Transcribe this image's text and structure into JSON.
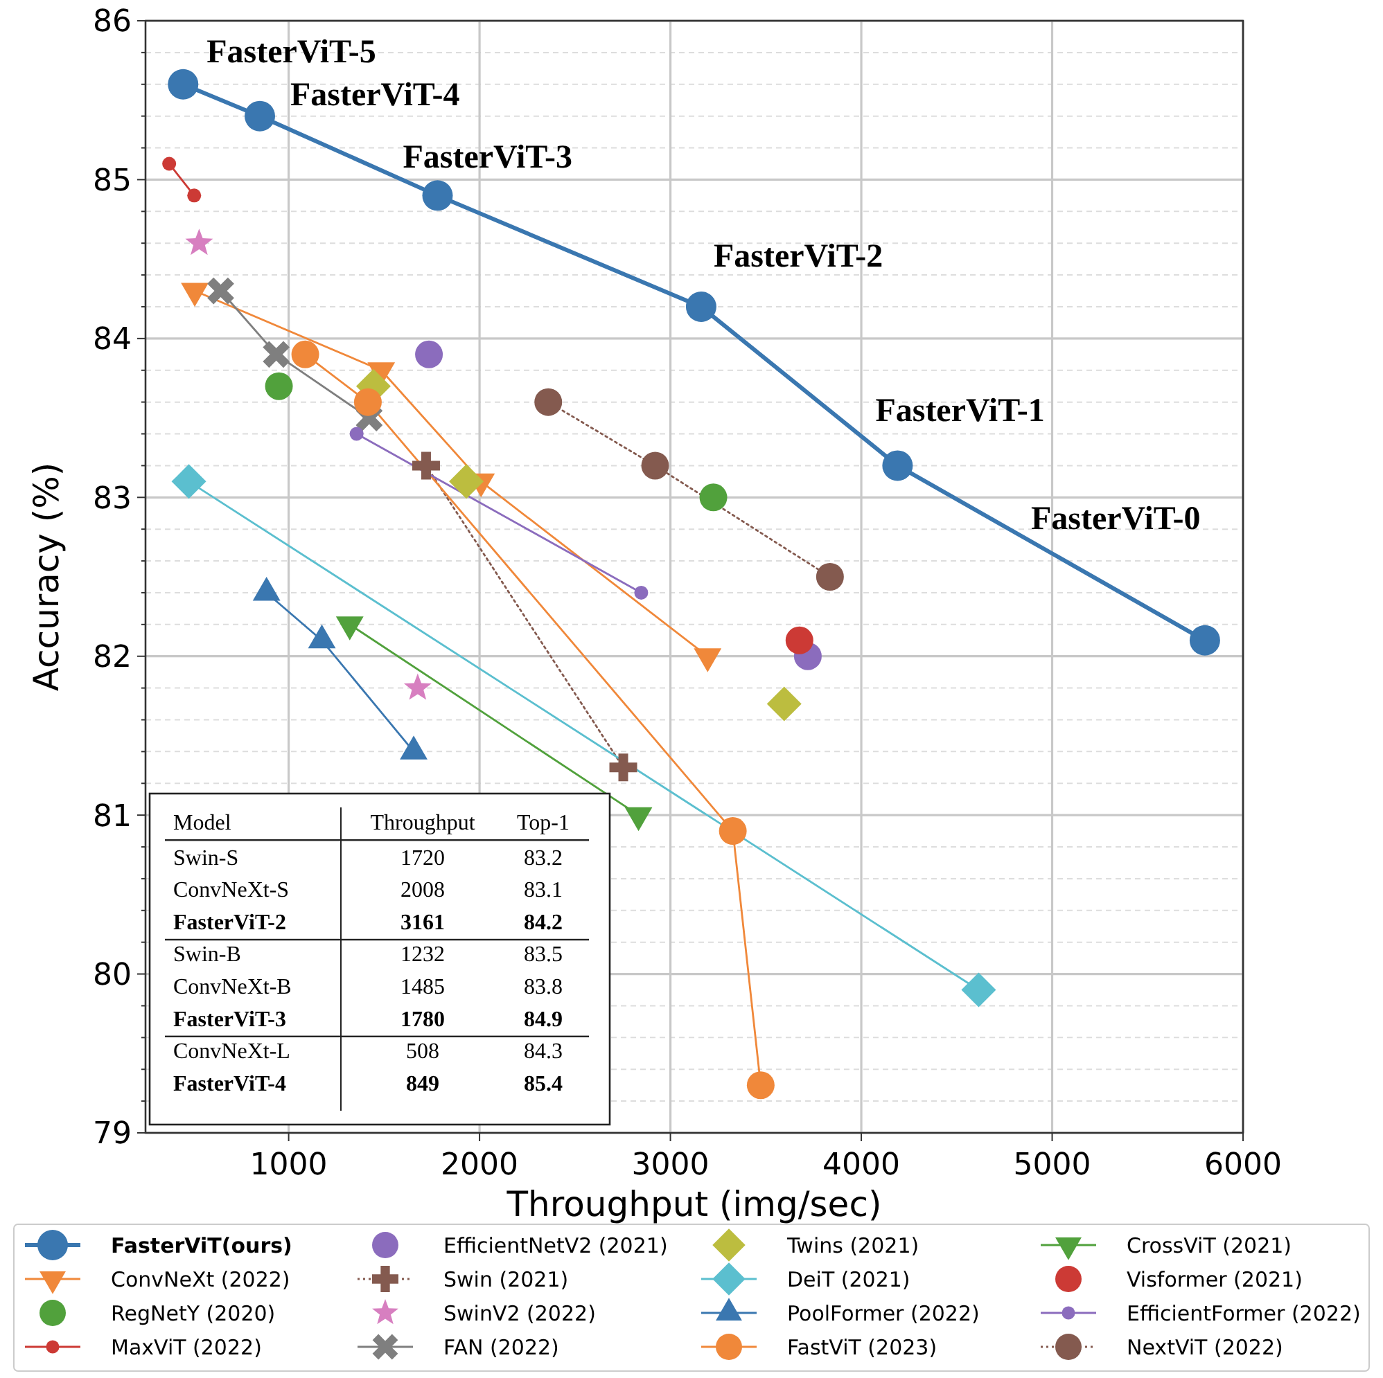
{
  "chart_data": {
    "type": "line",
    "xlabel": "Throughput (img/sec)",
    "ylabel": "Accuracy (%)",
    "xlim": [
      250,
      6000
    ],
    "ylim": [
      79,
      86
    ],
    "xticks": [
      1000,
      2000,
      3000,
      4000,
      5000,
      6000
    ],
    "yticks": [
      79,
      {
        "value": 79.2,
        "label": null
      },
      {
        "value": 79.4,
        "label": null
      },
      {
        "value": 79.6,
        "label": null
      },
      {
        "value": 79.8,
        "label": null
      },
      80,
      {
        "value": 80.2,
        "label": null
      },
      {
        "value": 80.4,
        "label": null
      },
      {
        "value": 80.6,
        "label": null
      },
      {
        "value": 80.8,
        "label": null
      },
      81,
      {
        "value": 81.2,
        "label": null
      },
      {
        "value": 81.4,
        "label": null
      },
      {
        "value": 81.6,
        "label": null
      },
      {
        "value": 81.8,
        "label": null
      },
      82,
      {
        "value": 82.2,
        "label": null
      },
      {
        "value": 82.4,
        "label": null
      },
      {
        "value": 82.6,
        "label": null
      },
      {
        "value": 82.8,
        "label": null
      },
      83,
      {
        "value": 83.2,
        "label": null
      },
      {
        "value": 83.4,
        "label": null
      },
      {
        "value": 83.6,
        "label": null
      },
      {
        "value": 83.8,
        "label": null
      },
      84,
      {
        "value": 84.2,
        "label": null
      },
      {
        "value": 84.4,
        "label": null
      },
      {
        "value": 84.6,
        "label": null
      },
      {
        "value": 84.8,
        "label": null
      },
      85,
      {
        "value": 85.2,
        "label": null
      },
      {
        "value": 85.4,
        "label": null
      },
      {
        "value": 85.6,
        "label": null
      },
      {
        "value": 85.8,
        "label": null
      },
      86
    ],
    "grid": true,
    "legend": "bottom",
    "series": [
      {
        "name": "FasterViT(ours)",
        "color": "#3a77b0",
        "marker": "circle",
        "x": [
          447,
          849,
          1780,
          3161,
          4190,
          5800
        ],
        "values": [
          85.6,
          85.4,
          84.9,
          84.2,
          83.2,
          82.1
        ]
      },
      {
        "name": "ConvNeXt (2022)",
        "color": "#f0883a",
        "marker": "triangle-down",
        "x": [
          508,
          1485,
          2008,
          3195
        ],
        "values": [
          84.3,
          83.8,
          83.1,
          82.0
        ]
      },
      {
        "name": "RegNetY (2020)",
        "color": "#51a13c",
        "type": "scatter",
        "marker": "circle",
        "x": [
          949,
          3225
        ],
        "values": [
          83.7,
          83.0
        ]
      },
      {
        "name": "MaxViT (2022)",
        "color": "#cc3a35",
        "marker": "point",
        "x": [
          374,
          505
        ],
        "values": [
          85.1,
          84.9
        ]
      },
      {
        "name": "EfficientNetV2 (2021)",
        "color": "#8b6cbd",
        "type": "scatter",
        "marker": "circle",
        "x": [
          1735,
          3720
        ],
        "values": [
          83.9,
          82.0
        ]
      },
      {
        "name": "Swin (2021)",
        "color": "#845a4f",
        "marker": "plus",
        "line_style": "dotted",
        "x": [
          1720,
          2753
        ],
        "values": [
          83.2,
          81.3
        ]
      },
      {
        "name": "SwinV2 (2022)",
        "color": "#d77fc0",
        "type": "scatter",
        "marker": "star",
        "x": [
          531,
          1676
        ],
        "values": [
          84.6,
          81.8
        ]
      },
      {
        "name": "FAN (2022)",
        "color": "#7f7f7f",
        "marker": "x",
        "x": [
          644,
          935,
          1422
        ],
        "values": [
          84.3,
          83.9,
          83.5
        ]
      },
      {
        "name": "Twins (2021)",
        "color": "#bcbd3f",
        "type": "scatter",
        "marker": "diamond",
        "x": [
          1444,
          1931,
          3596
        ],
        "values": [
          83.7,
          83.1,
          81.7
        ]
      },
      {
        "name": "DeiT (2021)",
        "color": "#5bbfcf",
        "marker": "diamond",
        "x": [
          477,
          4615
        ],
        "values": [
          83.1,
          79.9
        ]
      },
      {
        "name": "PoolFormer (2022)",
        "color": "#3a77b0",
        "marker": "triangle",
        "x": [
          884,
          1174,
          1655
        ],
        "values": [
          82.4,
          82.1,
          81.4
        ]
      },
      {
        "name": "FastViT (2023)",
        "color": "#f0883a",
        "marker": "circle",
        "x": [
          1087,
          1415,
          3327,
          3473
        ],
        "values": [
          83.9,
          83.6,
          80.9,
          79.3
        ]
      },
      {
        "name": "CrossViT (2021)",
        "color": "#51a13c",
        "marker": "triangle-down",
        "x": [
          1320,
          2833
        ],
        "values": [
          82.2,
          81.0
        ]
      },
      {
        "name": "Visformer (2021)",
        "color": "#cc3a35",
        "type": "scatter",
        "marker": "circle",
        "x": [
          3676
        ],
        "values": [
          82.1
        ]
      },
      {
        "name": "EfficientFormer (2022)",
        "color": "#8b6cbd",
        "marker": "point",
        "x": [
          1356,
          2847
        ],
        "values": [
          83.4,
          82.4
        ]
      },
      {
        "name": "NextViT (2022)",
        "color": "#845a4f",
        "marker": "circle",
        "line_style": "dotted",
        "x": [
          2360,
          2920,
          3836
        ],
        "values": [
          83.6,
          83.2,
          82.5
        ]
      }
    ],
    "annotations": [
      {
        "text": "FasterViT-5",
        "x": 447,
        "y": 85.6
      },
      {
        "text": "FasterViT-4",
        "x": 849,
        "y": 85.4
      },
      {
        "text": "FasterViT-3",
        "x": 1780,
        "y": 84.9
      },
      {
        "text": "FasterViT-2",
        "x": 3161,
        "y": 84.2
      },
      {
        "text": "FasterViT-1",
        "x": 4190,
        "y": 83.2
      },
      "FasterViT-0",
      "Model",
      "Throughput",
      "Top-1",
      "Swin-S",
      "1720",
      "83.2",
      "ConvNeXt-S",
      "2008",
      "83.1",
      "FasterViT-2",
      "3161",
      "84.2",
      "Swin-B",
      "1232",
      "83.5",
      "ConvNeXt-B",
      "1485",
      "83.8",
      "FasterViT-3",
      "1780",
      "84.9",
      "ConvNeXt-L",
      "508",
      "84.3",
      "FasterViT-4",
      "849",
      "85.4"
    ]
  }
}
